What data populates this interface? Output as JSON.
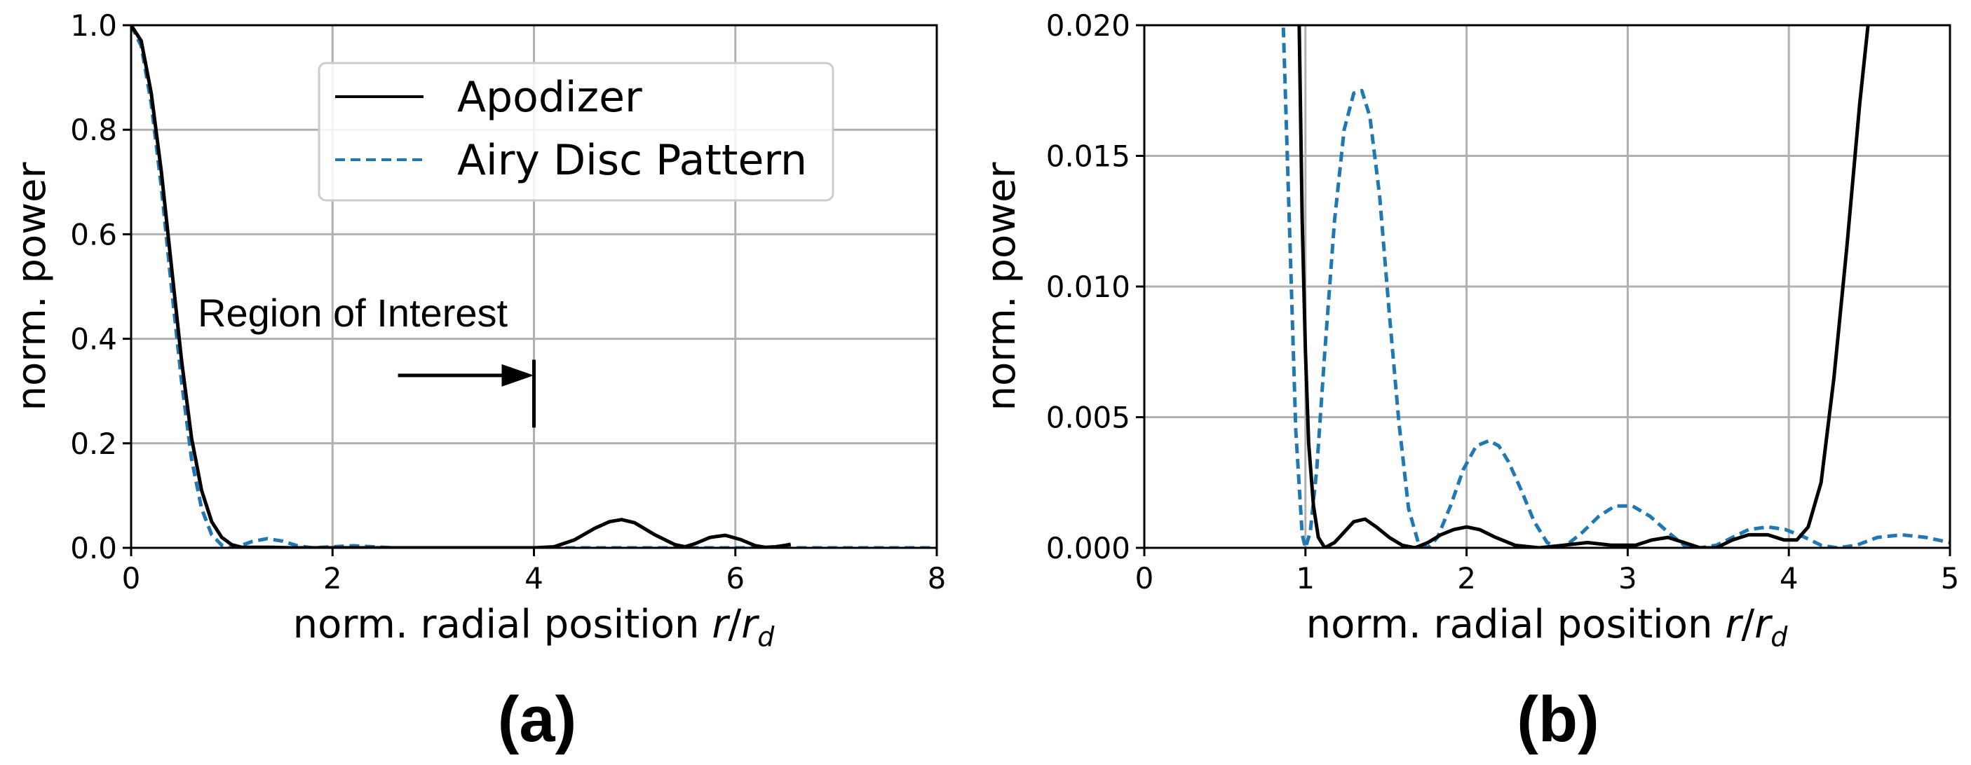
{
  "colors": {
    "apodizer": "#000000",
    "airy": "#1f77b4",
    "grid": "#b0b0b0"
  },
  "chart_data": [
    {
      "type": "line",
      "panel_label": "(a)",
      "xlabel": "norm. radial position",
      "xlabel_math": {
        "num": "r",
        "den": "r",
        "sub": "d"
      },
      "ylabel": "norm. power",
      "xlim": [
        0,
        8
      ],
      "ylim": [
        0,
        1.0
      ],
      "xticks": [
        "0",
        "2",
        "4",
        "6",
        "8"
      ],
      "yticks": [
        "0.0",
        "0.2",
        "0.4",
        "0.6",
        "0.8",
        "1.0"
      ],
      "grid": true,
      "legend": {
        "position": "top-center",
        "entries": [
          "Apodizer",
          "Airy Disc Pattern"
        ]
      },
      "annotation": {
        "text": "Region of Interest",
        "arrow_from_x": 2.65,
        "arrow_to_x": 4.0,
        "arrow_y": 0.33,
        "marker_x": 4.0,
        "marker_y_range": [
          0.23,
          0.36
        ]
      },
      "series": [
        {
          "name": "Apodizer",
          "style": "solid",
          "x": [
            0,
            0.1,
            0.2,
            0.3,
            0.4,
            0.5,
            0.6,
            0.7,
            0.8,
            0.9,
            1.0,
            1.1,
            1.2,
            1.4,
            1.6,
            2.0,
            2.5,
            3.0,
            3.5,
            4.0,
            4.2,
            4.4,
            4.6,
            4.75,
            4.87,
            5.0,
            5.2,
            5.4,
            5.5,
            5.6,
            5.75,
            5.9,
            6.05,
            6.2,
            6.3,
            6.4,
            6.5,
            6.55
          ],
          "y": [
            1.0,
            0.97,
            0.87,
            0.72,
            0.54,
            0.36,
            0.21,
            0.11,
            0.05,
            0.02,
            0.006,
            0.001,
            0.001,
            0.001,
            0.0,
            0.0,
            0.0,
            0.0,
            0.0,
            0.0,
            0.002,
            0.015,
            0.037,
            0.05,
            0.054,
            0.048,
            0.025,
            0.006,
            0.002,
            0.008,
            0.02,
            0.024,
            0.016,
            0.004,
            0.001,
            0.002,
            0.005,
            0.007
          ]
        },
        {
          "name": "Airy Disc Pattern",
          "style": "dashed",
          "x": [
            0,
            0.1,
            0.2,
            0.3,
            0.4,
            0.5,
            0.6,
            0.7,
            0.8,
            0.9,
            1.0,
            1.1,
            1.2,
            1.35,
            1.5,
            1.65,
            1.8,
            2.0,
            2.2,
            2.4,
            2.6,
            3.0,
            4.0,
            5.0,
            6.0,
            8.0
          ],
          "y": [
            1.0,
            0.96,
            0.85,
            0.69,
            0.5,
            0.32,
            0.17,
            0.075,
            0.025,
            0.005,
            0.0,
            0.005,
            0.012,
            0.0175,
            0.013,
            0.004,
            0.0,
            0.002,
            0.004,
            0.002,
            0.0,
            0.0,
            0.0,
            0.0,
            0.0,
            0.0
          ]
        }
      ]
    },
    {
      "type": "line",
      "panel_label": "(b)",
      "xlabel": "norm. radial position",
      "xlabel_math": {
        "num": "r",
        "den": "r",
        "sub": "d"
      },
      "ylabel": "norm. power",
      "xlim": [
        0,
        5
      ],
      "ylim": [
        0,
        0.02
      ],
      "xticks": [
        "0",
        "1",
        "2",
        "3",
        "4",
        "5"
      ],
      "yticks": [
        "0.000",
        "0.005",
        "0.010",
        "0.015",
        "0.020"
      ],
      "grid": true,
      "series": [
        {
          "name": "Apodizer",
          "style": "solid",
          "x": [
            0.96,
            0.98,
            1.0,
            1.02,
            1.05,
            1.08,
            1.12,
            1.18,
            1.24,
            1.3,
            1.37,
            1.44,
            1.52,
            1.6,
            1.68,
            1.76,
            1.84,
            1.92,
            2.0,
            2.08,
            2.18,
            2.3,
            2.45,
            2.6,
            2.75,
            2.9,
            3.05,
            3.15,
            3.25,
            3.35,
            3.45,
            3.55,
            3.65,
            3.75,
            3.87,
            3.97,
            4.05,
            4.12,
            4.2,
            4.28,
            4.36,
            4.44,
            4.5
          ],
          "y": [
            0.0205,
            0.0125,
            0.0075,
            0.004,
            0.0016,
            0.0004,
            0.0,
            0.0002,
            0.0006,
            0.001,
            0.0011,
            0.0008,
            0.0004,
            0.0001,
            0.0,
            0.0002,
            0.0005,
            0.0007,
            0.0008,
            0.0007,
            0.0004,
            0.0001,
            0.0,
            0.0001,
            0.0002,
            0.0001,
            0.0001,
            0.0003,
            0.0004,
            0.0002,
            0.0,
            0.0,
            0.0003,
            0.0005,
            0.0005,
            0.0003,
            0.0003,
            0.0008,
            0.0025,
            0.0065,
            0.0115,
            0.017,
            0.0205
          ]
        },
        {
          "name": "Airy Disc Pattern",
          "style": "dashed",
          "x": [
            0.86,
            0.9,
            0.94,
            0.98,
            1.0,
            1.03,
            1.07,
            1.12,
            1.18,
            1.24,
            1.3,
            1.35,
            1.4,
            1.46,
            1.52,
            1.58,
            1.64,
            1.7,
            1.76,
            1.82,
            1.9,
            1.98,
            2.06,
            2.14,
            2.2,
            2.26,
            2.34,
            2.42,
            2.5,
            2.58,
            2.64,
            2.72,
            2.82,
            2.92,
            3.03,
            3.14,
            3.25,
            3.35,
            3.45,
            3.55,
            3.65,
            3.75,
            3.87,
            3.98,
            4.1,
            4.2,
            4.3,
            4.42,
            4.55,
            4.7,
            4.85,
            5.0
          ],
          "y": [
            0.0205,
            0.0125,
            0.0045,
            0.0005,
            0.0,
            0.0006,
            0.003,
            0.0075,
            0.0125,
            0.016,
            0.0174,
            0.0175,
            0.0165,
            0.0135,
            0.009,
            0.0048,
            0.0015,
            0.0002,
            0.0,
            0.0004,
            0.0016,
            0.003,
            0.0039,
            0.0041,
            0.0039,
            0.0033,
            0.0022,
            0.001,
            0.0002,
            0.0,
            0.0002,
            0.0006,
            0.0012,
            0.0016,
            0.0016,
            0.0012,
            0.0006,
            0.0001,
            0.0,
            0.0001,
            0.0004,
            0.0007,
            0.0008,
            0.0007,
            0.0004,
            0.0001,
            0.0,
            0.0001,
            0.0004,
            0.0005,
            0.0004,
            0.0002
          ]
        }
      ]
    }
  ]
}
